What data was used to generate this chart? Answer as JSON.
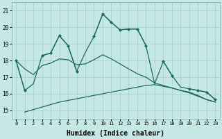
{
  "background_color": "#c5e8e5",
  "grid_color": "#9dcfca",
  "line_color": "#1a6b5a",
  "xlabel": "Humidex (Indice chaleur)",
  "xlim": [
    -0.5,
    23.5
  ],
  "ylim": [
    14.5,
    21.5
  ],
  "yticks": [
    15,
    16,
    17,
    18,
    19,
    20,
    21
  ],
  "xticks": [
    0,
    1,
    2,
    3,
    4,
    5,
    6,
    7,
    8,
    9,
    10,
    11,
    12,
    13,
    14,
    15,
    16,
    17,
    18,
    19,
    20,
    21,
    22,
    23
  ],
  "zigzag_segments": [
    {
      "x": [
        0,
        1
      ],
      "y": [
        18.0,
        16.2
      ]
    },
    {
      "x": [
        3,
        4,
        5,
        6,
        7
      ],
      "y": [
        18.3,
        18.45,
        19.5,
        18.9,
        17.35
      ]
    },
    {
      "x": [
        9,
        10,
        11,
        12,
        13,
        14,
        15
      ],
      "y": [
        19.45,
        20.8,
        20.3,
        19.85,
        19.9,
        19.9,
        18.9
      ]
    },
    {
      "x": [
        17,
        18
      ],
      "y": [
        17.95,
        17.1
      ]
    },
    {
      "x": [
        20,
        21,
        22,
        23
      ],
      "y": [
        16.3,
        16.2,
        16.1,
        15.65
      ]
    }
  ],
  "upper_line": {
    "x": [
      0,
      1,
      2,
      3,
      4,
      5,
      6,
      7,
      8,
      9,
      10,
      11,
      12,
      13,
      14,
      15,
      16,
      17,
      18,
      19,
      20,
      21,
      22,
      23
    ],
    "y": [
      18.0,
      16.2,
      16.6,
      18.3,
      18.45,
      19.5,
      18.9,
      17.35,
      18.5,
      19.45,
      20.8,
      20.3,
      19.85,
      19.9,
      19.9,
      18.9,
      16.6,
      17.95,
      17.1,
      16.4,
      16.3,
      16.2,
      16.1,
      15.65
    ]
  },
  "lower_line": {
    "x": [
      1,
      2,
      3,
      4,
      5,
      6,
      7,
      8,
      9,
      10,
      11,
      12,
      13,
      14,
      15,
      16,
      17,
      18,
      19,
      20,
      21,
      22,
      23
    ],
    "y": [
      14.9,
      15.05,
      15.2,
      15.35,
      15.5,
      15.6,
      15.7,
      15.8,
      15.9,
      16.0,
      16.1,
      16.2,
      16.3,
      16.4,
      16.5,
      16.55,
      16.45,
      16.35,
      16.2,
      16.05,
      15.85,
      15.65,
      15.5
    ]
  },
  "mid_line": {
    "x": [
      0,
      1,
      2,
      3,
      4,
      5,
      6,
      7,
      8,
      9,
      10,
      11,
      12,
      13,
      14,
      15,
      16,
      17,
      18,
      19,
      20,
      21,
      22,
      23
    ],
    "y": [
      18.0,
      17.5,
      17.15,
      17.7,
      17.85,
      18.1,
      18.05,
      17.75,
      17.8,
      18.05,
      18.35,
      18.1,
      17.8,
      17.5,
      17.2,
      17.0,
      16.65,
      16.5,
      16.35,
      16.2,
      16.1,
      15.9,
      15.65,
      15.5
    ]
  }
}
